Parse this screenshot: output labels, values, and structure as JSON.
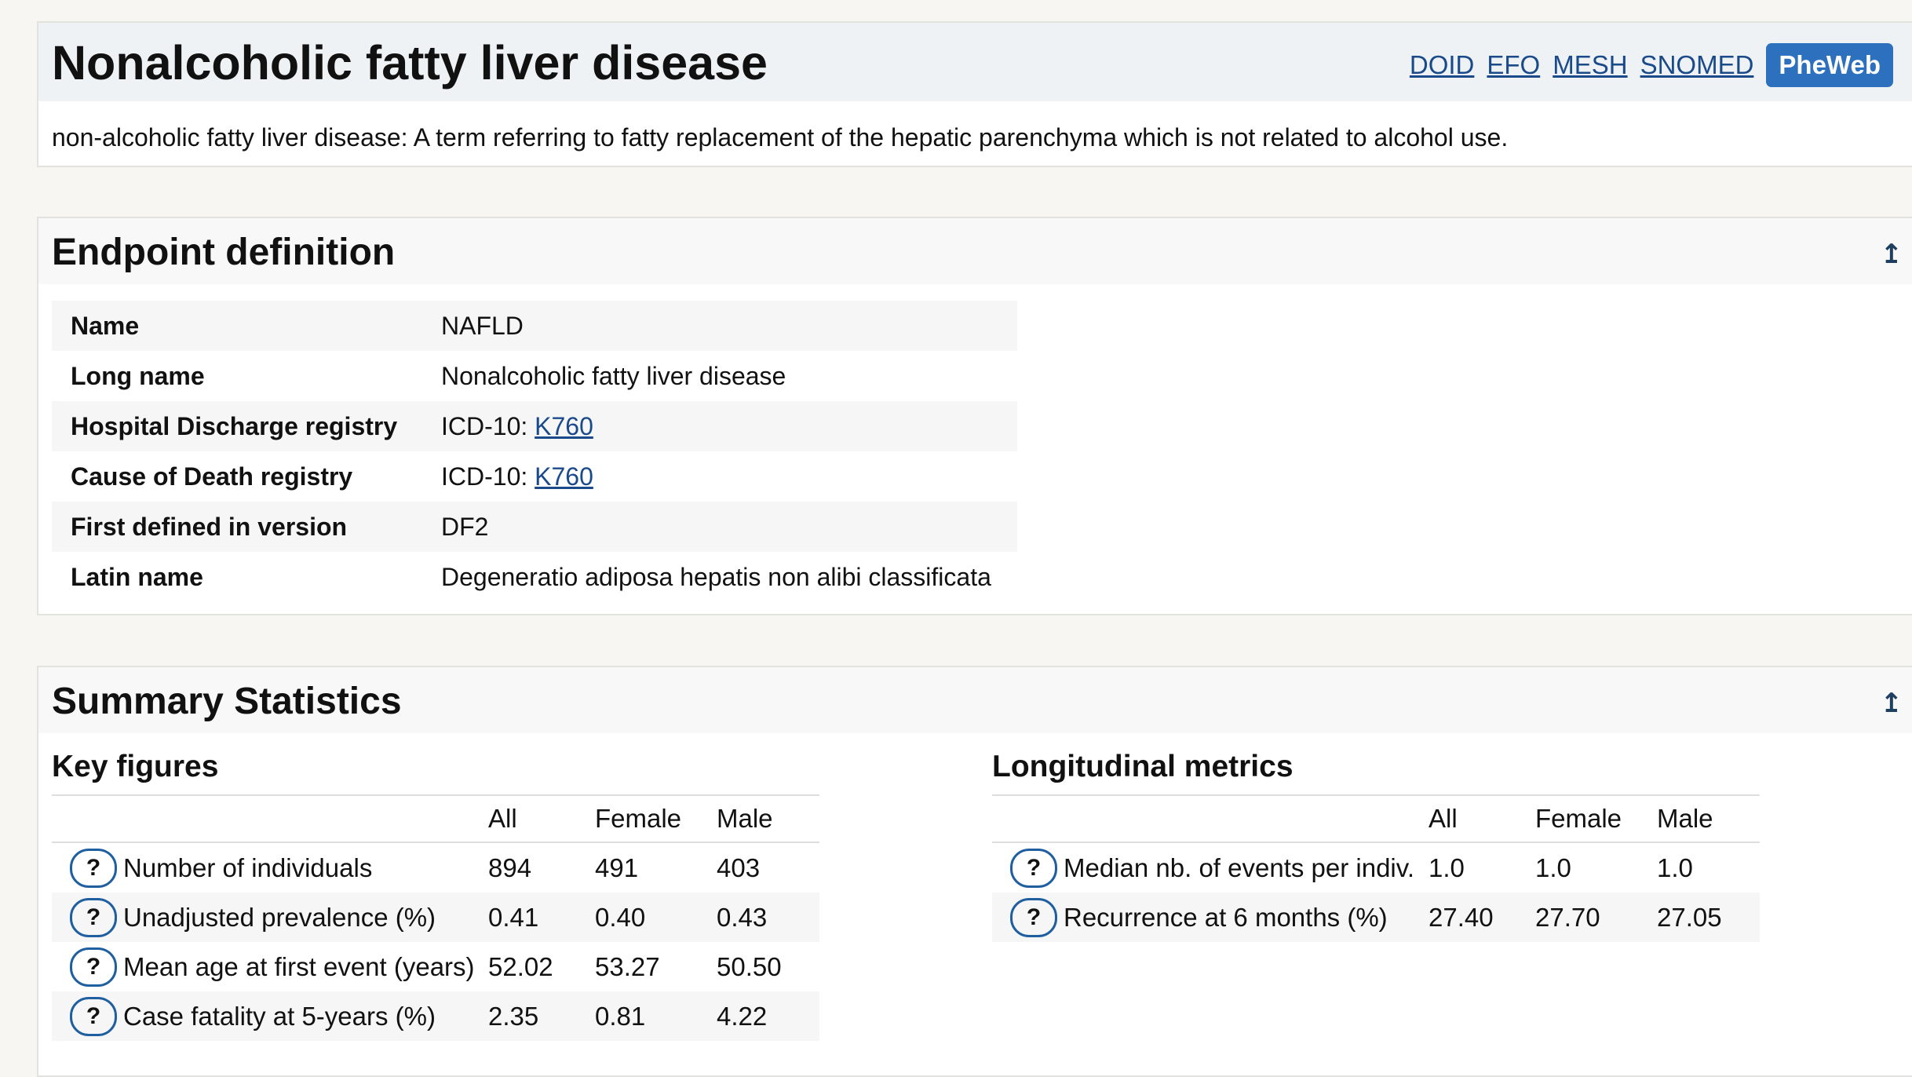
{
  "header": {
    "title": "Nonalcoholic fatty liver disease",
    "links": [
      "DOID",
      "EFO",
      "MESH",
      "SNOMED"
    ],
    "pheweb_label": "PheWeb",
    "description": "non-alcoholic fatty liver disease: A term referring to fatty replacement of the hepatic parenchyma which is not related to alcohol use."
  },
  "endpoint": {
    "title": "Endpoint definition",
    "collapse_icon": "arrow-up-bar-icon",
    "rows": [
      {
        "key": "Name",
        "prefix": "",
        "value": "NAFLD",
        "link": ""
      },
      {
        "key": "Long name",
        "prefix": "",
        "value": "Nonalcoholic fatty liver disease",
        "link": ""
      },
      {
        "key": "Hospital Discharge registry",
        "prefix": "ICD-10: ",
        "value": "",
        "link": "K760"
      },
      {
        "key": "Cause of Death registry",
        "prefix": "ICD-10: ",
        "value": "",
        "link": "K760"
      },
      {
        "key": "First defined in version",
        "prefix": "",
        "value": "DF2",
        "link": ""
      },
      {
        "key": "Latin name",
        "prefix": "",
        "value": "Degeneratio adiposa hepatis non alibi classificata",
        "link": ""
      }
    ]
  },
  "stats": {
    "title": "Summary Statistics",
    "key_figures": {
      "title": "Key figures",
      "columns": [
        "All",
        "Female",
        "Male"
      ],
      "rows": [
        {
          "label": "Number of individuals",
          "values": [
            "894",
            "491",
            "403"
          ]
        },
        {
          "label": "Unadjusted prevalence (%)",
          "values": [
            "0.41",
            "0.40",
            "0.43"
          ]
        },
        {
          "label": "Mean age at first event (years)",
          "values": [
            "52.02",
            "53.27",
            "50.50"
          ]
        },
        {
          "label": "Case fatality at 5-years (%)",
          "values": [
            "2.35",
            "0.81",
            "4.22"
          ]
        }
      ]
    },
    "longitudinal": {
      "title": "Longitudinal metrics",
      "columns": [
        "All",
        "Female",
        "Male"
      ],
      "rows": [
        {
          "label": "Median nb. of events per indiv.",
          "values": [
            "1.0",
            "1.0",
            "1.0"
          ]
        },
        {
          "label": "Recurrence at 6 months (%)",
          "values": [
            "27.40",
            "27.70",
            "27.05"
          ]
        }
      ]
    },
    "help_glyph": "?"
  }
}
